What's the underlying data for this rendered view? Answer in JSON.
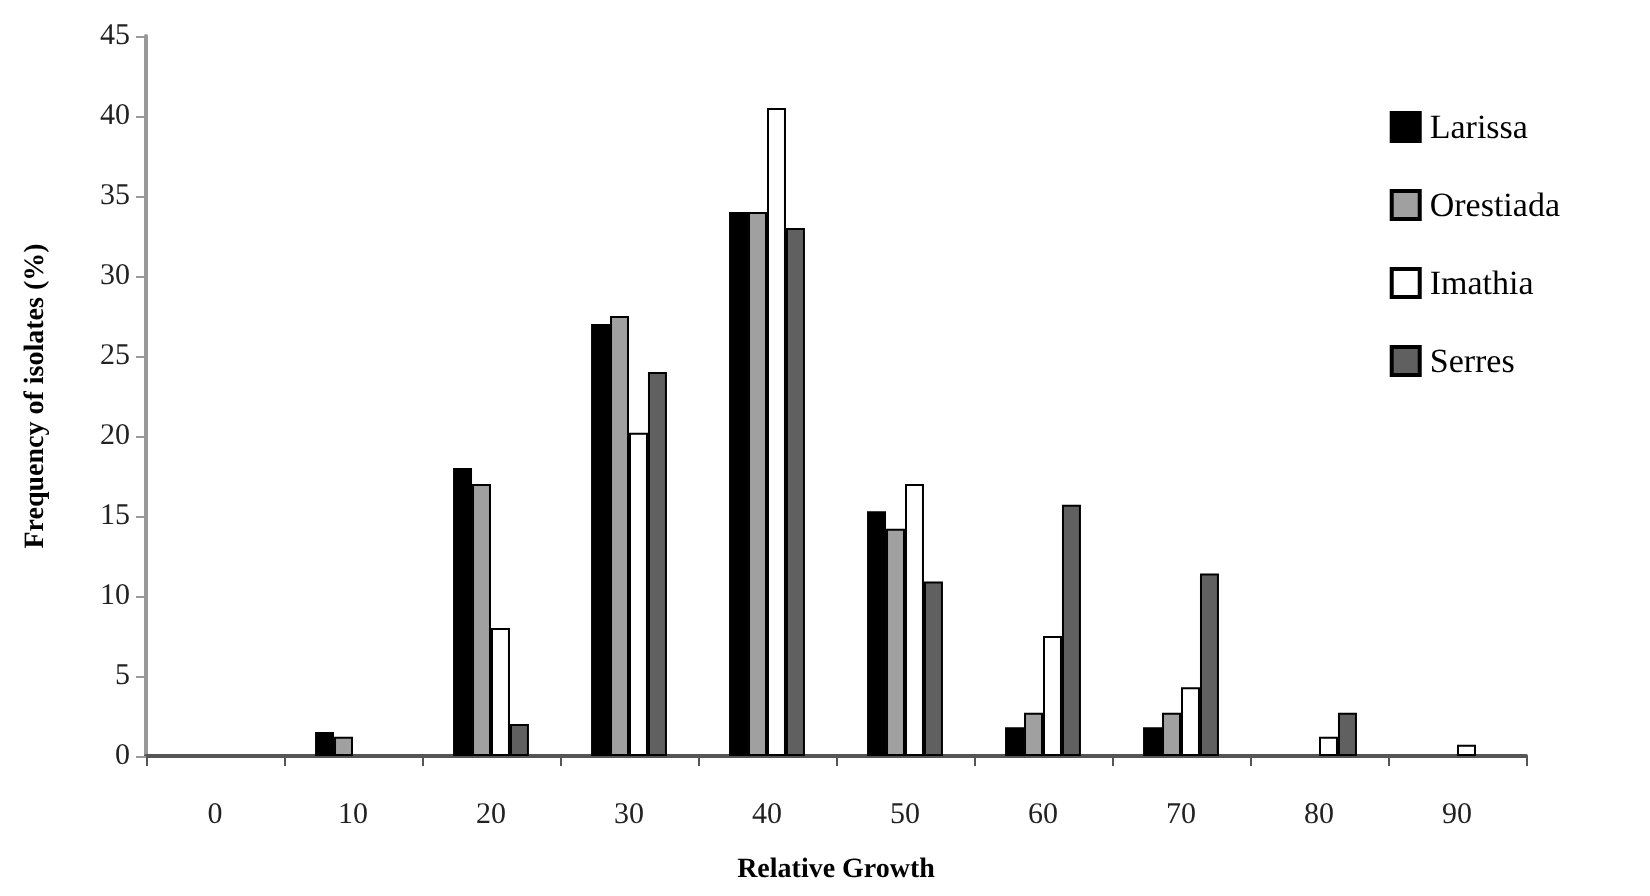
{
  "chart_data": {
    "type": "bar",
    "xlabel": "Relative Growth",
    "ylabel": "Frequency of isolates (%)",
    "categories": [
      "0",
      "10",
      "20",
      "30",
      "40",
      "50",
      "60",
      "70",
      "80",
      "90"
    ],
    "series": [
      {
        "name": "Larissa",
        "color": "#000000",
        "values": [
          null,
          1.5,
          18,
          27,
          34,
          15.3,
          1.8,
          1.8,
          null,
          null
        ]
      },
      {
        "name": "Orestiada",
        "color": "#a0a0a0",
        "values": [
          null,
          1.2,
          17,
          27.5,
          34,
          14.2,
          2.7,
          2.7,
          null,
          null
        ]
      },
      {
        "name": "Imathia",
        "color": "#ffffff",
        "values": [
          null,
          null,
          8,
          20.2,
          40.5,
          17,
          7.5,
          4.3,
          1.2,
          0.7
        ]
      },
      {
        "name": "Serres",
        "color": "#606060",
        "values": [
          null,
          null,
          2,
          24,
          33,
          10.9,
          15.7,
          11.4,
          2.7,
          null
        ]
      }
    ],
    "ylim": [
      0,
      45
    ],
    "yticks": [
      0,
      5,
      10,
      15,
      20,
      25,
      30,
      35,
      40,
      45
    ],
    "grid": false,
    "legend": "top right"
  }
}
